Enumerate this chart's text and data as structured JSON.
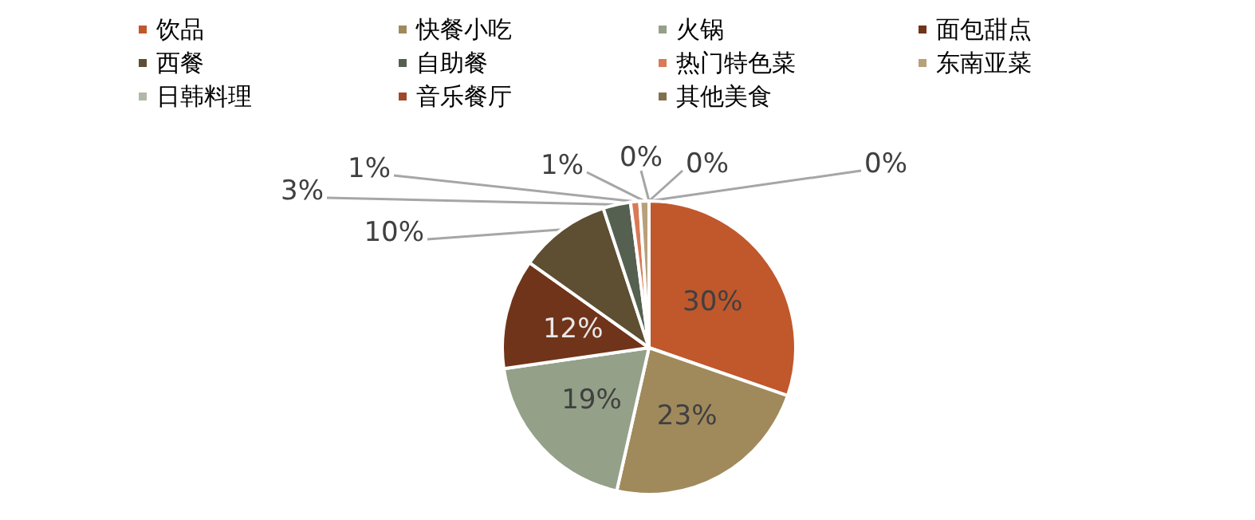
{
  "chart_data": {
    "type": "pie",
    "categories": [
      "饮品",
      "快餐小吃",
      "火锅",
      "面包甜点",
      "西餐",
      "自助餐",
      "热门特色菜",
      "东南亚菜",
      "日韩料理",
      "音乐餐厅",
      "其他美食"
    ],
    "values": [
      30,
      23,
      19,
      12,
      10,
      3,
      1,
      1,
      0,
      0,
      0
    ],
    "value_labels": [
      "30%",
      "23%",
      "19%",
      "12%",
      "10%",
      "3%",
      "1%",
      "1%",
      "0%",
      "0%",
      "0%"
    ],
    "colors": [
      "#c0582c",
      "#a08a5c",
      "#94a088",
      "#70341a",
      "#5e4e32",
      "#566050",
      "#d87a56",
      "#b8a07a",
      "#b0b8a8",
      "#a0482a",
      "#807050"
    ],
    "legend": "top"
  }
}
